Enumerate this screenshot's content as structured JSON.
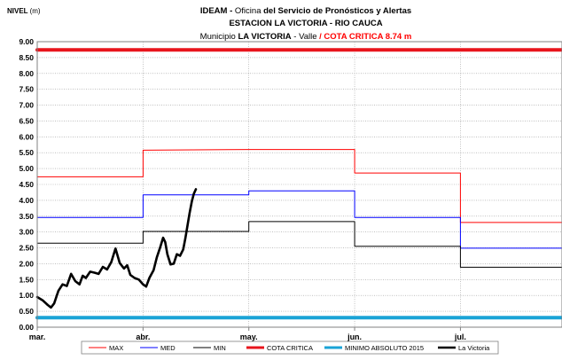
{
  "header": {
    "ylabel": "NIVEL",
    "yunit": "(m)",
    "title_line1_a": "IDEAM - ",
    "title_line1_b": "Oficina ",
    "title_line1_c": "del Servicio de Pronósticos y Alertas",
    "title_line2": "ESTACION LA VICTORIA - RIO CAUCA",
    "title_line3_a": "Municipio ",
    "title_line3_b": "LA VICTORIA",
    "title_line3_c": " - Valle",
    "title_line3_d": "  /  ",
    "title_line3_e": "COTA CRITICA 8.74 m"
  },
  "colors": {
    "max": "#ff0000",
    "med": "#0000ff",
    "min": "#000000",
    "cota": "#e8141c",
    "minimo": "#1aa3d6",
    "victoria": "#000000",
    "title_red": "#ff0000"
  },
  "chart_data": {
    "type": "line",
    "xlabel": "",
    "ylabel": "NIVEL (m)",
    "ylim": [
      0,
      9
    ],
    "ytick_labels": [
      "0.00",
      "0.50",
      "1.00",
      "1.50",
      "2.00",
      "2.50",
      "3.00",
      "3.50",
      "4.00",
      "4.50",
      "5.00",
      "5.50",
      "6.00",
      "6.50",
      "7.00",
      "7.50",
      "8.00",
      "8.50",
      "9.00"
    ],
    "xlim": [
      0,
      4.96
    ],
    "x_unit": "months from start of March",
    "xtick_labels": [
      "mar.",
      "abr.",
      "may.",
      "jun.",
      "jul."
    ],
    "xtick_values": [
      0,
      1,
      2,
      3,
      4
    ],
    "grid": true,
    "legend_position": "bottom",
    "series": [
      {
        "name": "MAX",
        "color_key": "max",
        "step": true,
        "x": [
          0,
          1.0,
          1.0,
          2.0,
          3.0,
          3.0,
          4.0,
          4.0,
          4.96
        ],
        "y": [
          4.74,
          4.74,
          5.58,
          5.6,
          5.6,
          4.86,
          4.86,
          3.3,
          3.3
        ]
      },
      {
        "name": "MED",
        "color_key": "med",
        "step": true,
        "x": [
          0,
          1.0,
          1.0,
          2.0,
          2.0,
          3.0,
          3.0,
          4.0,
          4.0,
          4.96
        ],
        "y": [
          3.46,
          3.46,
          4.17,
          4.17,
          4.3,
          4.3,
          3.46,
          3.46,
          2.49,
          2.49
        ]
      },
      {
        "name": "MIN",
        "color_key": "min",
        "step": true,
        "x": [
          0,
          1.0,
          1.0,
          2.0,
          2.0,
          3.0,
          3.0,
          4.0,
          4.0,
          4.96
        ],
        "y": [
          2.65,
          2.65,
          3.02,
          3.02,
          3.33,
          3.33,
          2.55,
          2.55,
          1.89,
          1.89
        ]
      },
      {
        "name": "COTA CRITICA",
        "color_key": "cota",
        "width": 4,
        "x": [
          0,
          4.96
        ],
        "y": [
          8.74,
          8.74
        ]
      },
      {
        "name": "MINIMO ABSOLUTO 2015",
        "color_key": "minimo",
        "width": 4,
        "x": [
          0,
          4.96
        ],
        "y": [
          0.3,
          0.3
        ]
      },
      {
        "name": "La Victoria",
        "color_key": "victoria",
        "width": 2.6,
        "x": [
          0,
          0.05,
          0.1,
          0.13,
          0.16,
          0.2,
          0.24,
          0.28,
          0.32,
          0.36,
          0.4,
          0.43,
          0.46,
          0.5,
          0.54,
          0.58,
          0.62,
          0.66,
          0.7,
          0.74,
          0.78,
          0.82,
          0.85,
          0.88,
          0.92,
          0.96,
          1.0,
          1.03,
          1.06,
          1.1,
          1.13,
          1.16,
          1.19,
          1.21,
          1.23,
          1.26,
          1.29,
          1.32,
          1.35,
          1.38,
          1.4,
          1.42,
          1.44,
          1.46,
          1.48,
          1.5
        ],
        "y": [
          0.95,
          0.85,
          0.7,
          0.62,
          0.75,
          1.15,
          1.35,
          1.3,
          1.68,
          1.45,
          1.35,
          1.62,
          1.55,
          1.75,
          1.72,
          1.68,
          1.9,
          1.82,
          2.05,
          2.48,
          2.02,
          1.85,
          1.95,
          1.65,
          1.55,
          1.5,
          1.35,
          1.28,
          1.55,
          1.8,
          2.2,
          2.5,
          2.82,
          2.68,
          2.3,
          1.98,
          2.0,
          2.3,
          2.25,
          2.45,
          2.8,
          3.2,
          3.6,
          3.95,
          4.2,
          4.35
        ]
      }
    ]
  }
}
